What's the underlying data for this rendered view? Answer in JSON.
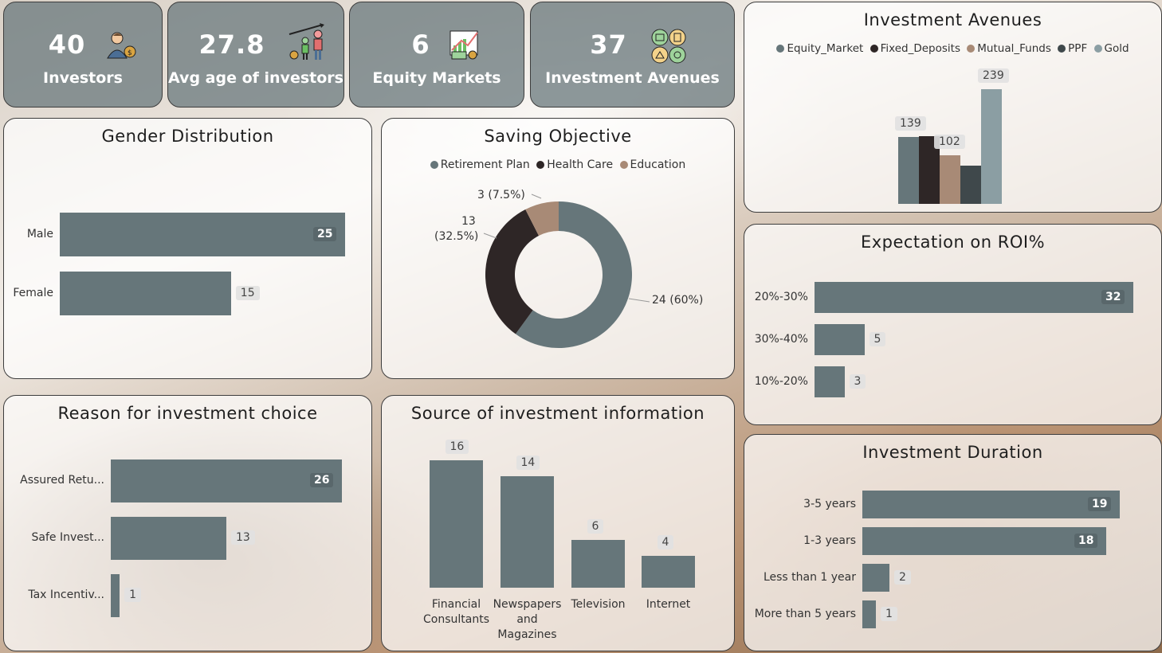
{
  "kpis": [
    {
      "value": "40",
      "label": "Investors",
      "icon": "investor-icon"
    },
    {
      "value": "27.8",
      "label": "Avg age of investors",
      "icon": "family-growth-icon"
    },
    {
      "value": "6",
      "label": "Equity Markets",
      "icon": "market-chart-icon"
    },
    {
      "value": "37",
      "label": "Investment Avenues",
      "icon": "investment-avenues-icon"
    }
  ],
  "gender": {
    "title": "Gender Distribution",
    "chart_data": {
      "type": "bar",
      "orientation": "horizontal",
      "categories": [
        "Male",
        "Female"
      ],
      "values": [
        25,
        15
      ],
      "xlim": [
        0,
        25
      ]
    }
  },
  "saving": {
    "title": "Saving Objective",
    "legend": [
      "Retirement Plan",
      "Health Care",
      "Education"
    ],
    "colors": [
      "#66767a",
      "#2e2626",
      "#a88a76"
    ],
    "slice_labels": [
      "24 (60%)",
      "13",
      "(32.5%)",
      "3 (7.5%)"
    ],
    "chart_data": {
      "type": "pie",
      "categories": [
        "Retirement Plan",
        "Health Care",
        "Education"
      ],
      "values": [
        24,
        13,
        3
      ],
      "percent": [
        60,
        32.5,
        7.5
      ]
    }
  },
  "avenues": {
    "title": "Investment Avenues",
    "legend": [
      "Equity_Market",
      "Fixed_Deposits",
      "Mutual_Funds",
      "PPF",
      "Gold"
    ],
    "colors": [
      "#66767a",
      "#2e2626",
      "#a88a76",
      "#3f484b",
      "#8b9ea3"
    ],
    "chart_data": {
      "type": "bar",
      "categories": [
        "Equity_Market",
        "Fixed_Deposits",
        "Mutual_Funds",
        "PPF",
        "Gold"
      ],
      "values": [
        139,
        141,
        102,
        80,
        239
      ],
      "data_labels": [
        "139",
        "",
        "102",
        "",
        "239"
      ]
    }
  },
  "roi": {
    "title": "Expectation on ROI%",
    "chart_data": {
      "type": "bar",
      "orientation": "horizontal",
      "categories": [
        "20%-30%",
        "30%-40%",
        "10%-20%"
      ],
      "values": [
        32,
        5,
        3
      ],
      "xlim": [
        0,
        32
      ]
    }
  },
  "reason": {
    "title": "Reason for investment choice",
    "chart_data": {
      "type": "bar",
      "orientation": "horizontal",
      "categories": [
        "Assured Retu...",
        "Safe Invest...",
        "Tax Incentiv..."
      ],
      "values": [
        26,
        13,
        1
      ],
      "xlim": [
        0,
        26
      ]
    }
  },
  "source": {
    "title": "Source of investment information",
    "chart_data": {
      "type": "bar",
      "categories": [
        [
          "Financial",
          "Consultants"
        ],
        [
          "Newspapers",
          "and",
          "Magazines"
        ],
        [
          "Television"
        ],
        [
          "Internet"
        ]
      ],
      "values": [
        16,
        14,
        6,
        4
      ],
      "ylim": [
        0,
        16
      ]
    }
  },
  "duration": {
    "title": "Investment Duration",
    "chart_data": {
      "type": "bar",
      "orientation": "horizontal",
      "categories": [
        "3-5 years",
        "1-3 years",
        "Less than 1 year",
        "More than 5 years"
      ],
      "values": [
        19,
        18,
        2,
        1
      ],
      "xlim": [
        0,
        19
      ]
    }
  }
}
